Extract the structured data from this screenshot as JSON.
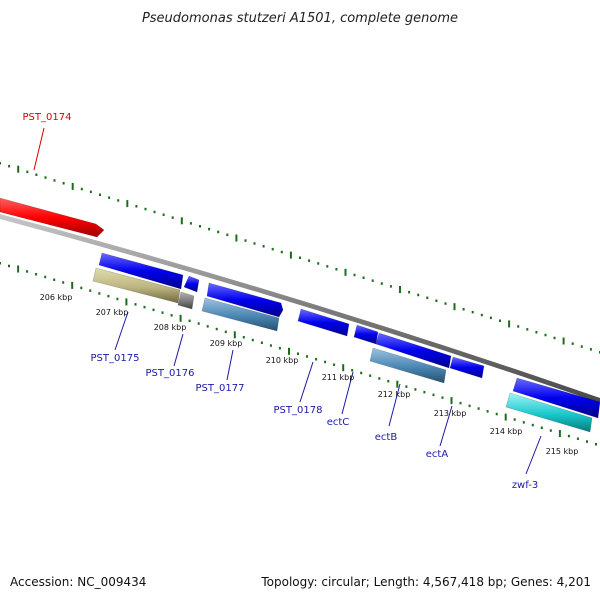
{
  "title": "Pseudomonas stutzeri A1501, complete genome",
  "footer": {
    "accession": "Accession: NC_009434",
    "topology": "Topology: circular; Length: 4,567,418 bp; Genes: 4,201"
  },
  "colors": {
    "highlight": "#d90000",
    "gene_label": "#1a1aa8",
    "backbone": "#808080",
    "tick": "#1a6e1a",
    "cds": "#1010e0",
    "olive": "#b8b27a",
    "gray": "#707070",
    "steel": "#4a86b4",
    "cyan": "#18c8cc"
  },
  "kbp_labels": [
    "206 kbp",
    "207 kbp",
    "208 kbp",
    "209 kbp",
    "210 kbp",
    "211 kbp",
    "212 kbp",
    "213 kbp",
    "214 kbp",
    "215 kbp"
  ],
  "genes": [
    {
      "name": "PST_0174",
      "color": "highlight"
    },
    {
      "name": "PST_0175",
      "color": "gene_label"
    },
    {
      "name": "PST_0176",
      "color": "gene_label"
    },
    {
      "name": "PST_0177",
      "color": "gene_label"
    },
    {
      "name": "PST_0178",
      "color": "gene_label"
    },
    {
      "name": "ectC",
      "color": "gene_label"
    },
    {
      "name": "ectB",
      "color": "gene_label"
    },
    {
      "name": "ectA",
      "color": "gene_label"
    },
    {
      "name": "zwf-3",
      "color": "gene_label"
    }
  ]
}
